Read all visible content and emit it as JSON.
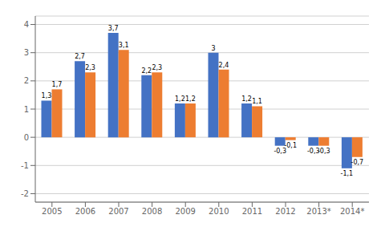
{
  "chart_data": {
    "type": "bar",
    "categories": [
      "2005",
      "2006",
      "2007",
      "2008",
      "2009",
      "2010",
      "2011",
      "2012",
      "2013*",
      "2014*"
    ],
    "series": [
      {
        "color": "#4472C4",
        "values": [
          1.3,
          2.7,
          3.7,
          2.2,
          1.2,
          3.0,
          1.2,
          -0.3,
          -0.3,
          -1.1
        ],
        "value_labels": [
          "1,3",
          "2,7",
          "3,7",
          "2,2",
          "1,2",
          "3",
          "1,2",
          "-0,3",
          "-0,3",
          "-1,1"
        ]
      },
      {
        "color": "#ED7D31",
        "values": [
          1.7,
          2.3,
          3.1,
          2.3,
          1.2,
          2.4,
          1.1,
          -0.1,
          -0.3,
          -0.7
        ],
        "value_labels": [
          "1,7",
          "2,3",
          "3,1",
          "2,3",
          "1,2",
          "2,4",
          "1,1",
          "-0,1",
          "-0,3",
          "-0,7"
        ]
      }
    ],
    "ylim": [
      -2.3,
      4.3
    ],
    "yticks": [
      -2,
      -1,
      0,
      1,
      2,
      3,
      4
    ],
    "grid": true,
    "data_labels": true
  }
}
